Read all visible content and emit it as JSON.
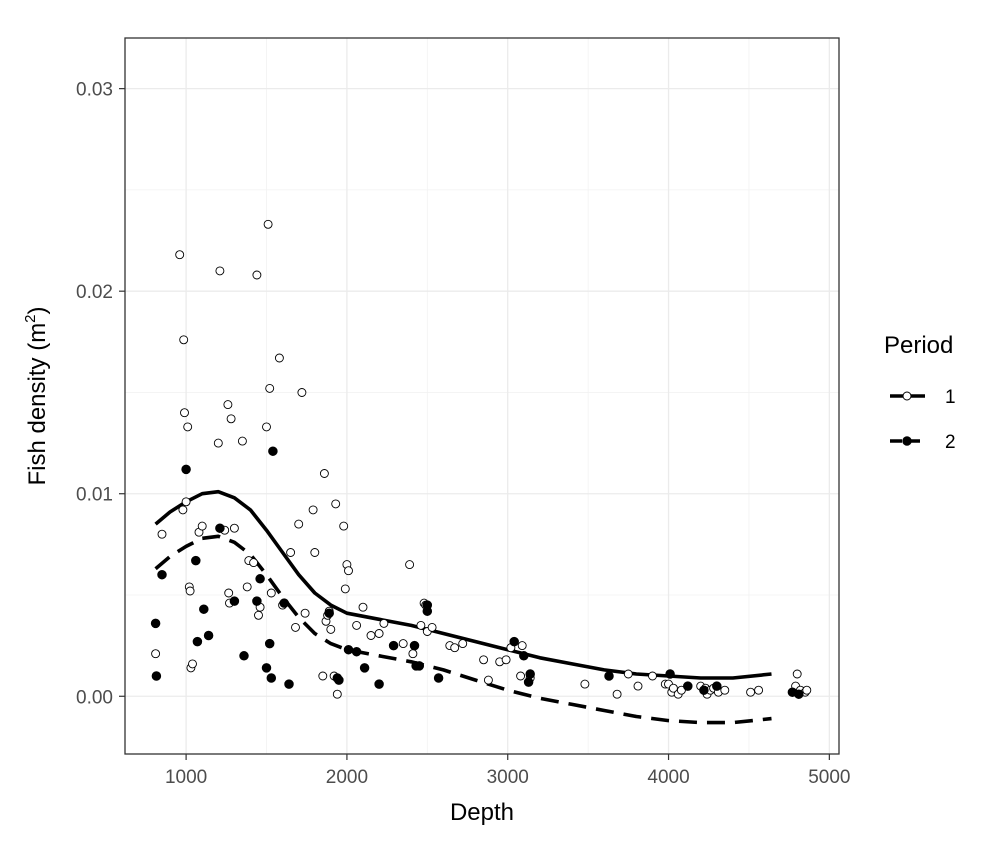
{
  "chart_data": {
    "type": "scatter",
    "xlabel": "Depth",
    "ylabel": "Fish density (m",
    "ylabel_sup": "2",
    "ylabel_close": ")",
    "xlim": [
      620,
      5060
    ],
    "ylim": [
      -0.00285,
      0.0325
    ],
    "x_ticks": [
      1000,
      2000,
      3000,
      4000,
      5000
    ],
    "x_tick_labels": [
      "1000",
      "2000",
      "3000",
      "4000",
      "5000"
    ],
    "y_ticks": [
      0,
      0.01,
      0.02,
      0.03
    ],
    "y_tick_labels": [
      "0.00",
      "0.01",
      "0.02",
      "0.03"
    ],
    "grid": true,
    "legend": {
      "title": "Period",
      "position": "right",
      "entries": [
        {
          "label": "1",
          "marker": "open-circle",
          "line": "solid"
        },
        {
          "label": "2",
          "marker": "filled-circle",
          "line": "dashed"
        }
      ]
    },
    "series": [
      {
        "name": "1",
        "marker": "open-circle",
        "points": [
          [
            810,
            0.0021
          ],
          [
            850,
            0.008
          ],
          [
            960,
            0.0218
          ],
          [
            980,
            0.0092
          ],
          [
            985,
            0.0176
          ],
          [
            990,
            0.014
          ],
          [
            1000,
            0.0096
          ],
          [
            1010,
            0.0133
          ],
          [
            1020,
            0.0054
          ],
          [
            1025,
            0.0052
          ],
          [
            1030,
            0.0014
          ],
          [
            1040,
            0.0016
          ],
          [
            1080,
            0.0081
          ],
          [
            1100,
            0.0084
          ],
          [
            1200,
            0.0125
          ],
          [
            1210,
            0.021
          ],
          [
            1240,
            0.0082
          ],
          [
            1260,
            0.0144
          ],
          [
            1265,
            0.0051
          ],
          [
            1270,
            0.0046
          ],
          [
            1280,
            0.0137
          ],
          [
            1300,
            0.0083
          ],
          [
            1350,
            0.0126
          ],
          [
            1380,
            0.0054
          ],
          [
            1390,
            0.0067
          ],
          [
            1420,
            0.0066
          ],
          [
            1440,
            0.0208
          ],
          [
            1450,
            0.004
          ],
          [
            1460,
            0.0044
          ],
          [
            1500,
            0.0133
          ],
          [
            1510,
            0.0233
          ],
          [
            1520,
            0.0152
          ],
          [
            1530,
            0.0051
          ],
          [
            1580,
            0.0167
          ],
          [
            1600,
            0.0045
          ],
          [
            1650,
            0.0071
          ],
          [
            1680,
            0.0034
          ],
          [
            1700,
            0.0085
          ],
          [
            1720,
            0.015
          ],
          [
            1740,
            0.0041
          ],
          [
            1790,
            0.0092
          ],
          [
            1800,
            0.0071
          ],
          [
            1850,
            0.001
          ],
          [
            1860,
            0.011
          ],
          [
            1870,
            0.0037
          ],
          [
            1880,
            0.004
          ],
          [
            1890,
            0.0042
          ],
          [
            1900,
            0.0033
          ],
          [
            1920,
            0.001
          ],
          [
            1930,
            0.0095
          ],
          [
            1940,
            0.0001
          ],
          [
            1980,
            0.0084
          ],
          [
            1990,
            0.0053
          ],
          [
            2000,
            0.0065
          ],
          [
            2010,
            0.0062
          ],
          [
            2060,
            0.0035
          ],
          [
            2100,
            0.0044
          ],
          [
            2150,
            0.003
          ],
          [
            2200,
            0.0031
          ],
          [
            2230,
            0.0036
          ],
          [
            2350,
            0.0026
          ],
          [
            2390,
            0.0065
          ],
          [
            2410,
            0.0021
          ],
          [
            2460,
            0.0035
          ],
          [
            2480,
            0.0046
          ],
          [
            2490,
            0.0045
          ],
          [
            2500,
            0.0032
          ],
          [
            2530,
            0.0034
          ],
          [
            2640,
            0.0025
          ],
          [
            2670,
            0.0024
          ],
          [
            2720,
            0.0026
          ],
          [
            2850,
            0.0018
          ],
          [
            2880,
            0.0008
          ],
          [
            2950,
            0.0017
          ],
          [
            2990,
            0.0018
          ],
          [
            3020,
            0.0024
          ],
          [
            3080,
            0.001
          ],
          [
            3090,
            0.0025
          ],
          [
            3140,
            0.0009
          ],
          [
            3480,
            0.0006
          ],
          [
            3680,
            0.0001
          ],
          [
            3750,
            0.0011
          ],
          [
            3810,
            0.0005
          ],
          [
            3900,
            0.001
          ],
          [
            3980,
            0.0006
          ],
          [
            4000,
            0.0006
          ],
          [
            4020,
            0.0002
          ],
          [
            4030,
            0.0004
          ],
          [
            4060,
            0.0001
          ],
          [
            4080,
            0.0003
          ],
          [
            4200,
            0.0005
          ],
          [
            4230,
            0.0004
          ],
          [
            4240,
            0.0001
          ],
          [
            4260,
            0.0003
          ],
          [
            4280,
            0.0004
          ],
          [
            4310,
            0.0002
          ],
          [
            4350,
            0.0003
          ],
          [
            4510,
            0.0002
          ],
          [
            4560,
            0.0003
          ],
          [
            4790,
            0.0005
          ],
          [
            4800,
            0.0011
          ],
          [
            4820,
            0.0003
          ],
          [
            4850,
            0.0002
          ],
          [
            4860,
            0.0003
          ]
        ],
        "smooth": [
          [
            810,
            0.0085
          ],
          [
            900,
            0.0091
          ],
          [
            1000,
            0.0096
          ],
          [
            1100,
            0.01
          ],
          [
            1200,
            0.0101
          ],
          [
            1300,
            0.0098
          ],
          [
            1400,
            0.0092
          ],
          [
            1500,
            0.0082
          ],
          [
            1600,
            0.0071
          ],
          [
            1700,
            0.006
          ],
          [
            1800,
            0.0051
          ],
          [
            1900,
            0.0045
          ],
          [
            2000,
            0.0041
          ],
          [
            2200,
            0.0038
          ],
          [
            2400,
            0.0035
          ],
          [
            2600,
            0.0031
          ],
          [
            2800,
            0.0027
          ],
          [
            3000,
            0.0023
          ],
          [
            3200,
            0.0019
          ],
          [
            3400,
            0.0016
          ],
          [
            3600,
            0.0013
          ],
          [
            3800,
            0.0011
          ],
          [
            4000,
            0.001
          ],
          [
            4200,
            0.0009
          ],
          [
            4400,
            0.0009
          ],
          [
            4640,
            0.0011
          ]
        ]
      },
      {
        "name": "2",
        "marker": "filled-circle",
        "points": [
          [
            810,
            0.0036
          ],
          [
            815,
            0.001
          ],
          [
            850,
            0.006
          ],
          [
            1000,
            0.0112
          ],
          [
            1060,
            0.0067
          ],
          [
            1070,
            0.0027
          ],
          [
            1110,
            0.0043
          ],
          [
            1140,
            0.003
          ],
          [
            1210,
            0.0083
          ],
          [
            1300,
            0.0047
          ],
          [
            1360,
            0.002
          ],
          [
            1440,
            0.0047
          ],
          [
            1460,
            0.0058
          ],
          [
            1500,
            0.0014
          ],
          [
            1520,
            0.0026
          ],
          [
            1530,
            0.0009
          ],
          [
            1540,
            0.0121
          ],
          [
            1610,
            0.0046
          ],
          [
            1640,
            0.0006
          ],
          [
            1890,
            0.0041
          ],
          [
            1940,
            0.0009
          ],
          [
            1950,
            0.0008
          ],
          [
            2010,
            0.0023
          ],
          [
            2060,
            0.0022
          ],
          [
            2110,
            0.0014
          ],
          [
            2200,
            0.0006
          ],
          [
            2290,
            0.0025
          ],
          [
            2420,
            0.0025
          ],
          [
            2430,
            0.0015
          ],
          [
            2450,
            0.0015
          ],
          [
            2500,
            0.0045
          ],
          [
            2500,
            0.0042
          ],
          [
            2570,
            0.0009
          ],
          [
            3040,
            0.0027
          ],
          [
            3100,
            0.002
          ],
          [
            3130,
            0.0007
          ],
          [
            3140,
            0.0011
          ],
          [
            3630,
            0.001
          ],
          [
            4010,
            0.0011
          ],
          [
            4120,
            0.0005
          ],
          [
            4220,
            0.0003
          ],
          [
            4300,
            0.0005
          ],
          [
            4770,
            0.0002
          ],
          [
            4810,
            0.0001
          ]
        ],
        "smooth": [
          [
            810,
            0.0063
          ],
          [
            900,
            0.0069
          ],
          [
            1000,
            0.0074
          ],
          [
            1100,
            0.0078
          ],
          [
            1200,
            0.0079
          ],
          [
            1300,
            0.0076
          ],
          [
            1400,
            0.007
          ],
          [
            1500,
            0.006
          ],
          [
            1600,
            0.0049
          ],
          [
            1700,
            0.0039
          ],
          [
            1800,
            0.0031
          ],
          [
            1900,
            0.0026
          ],
          [
            2000,
            0.0023
          ],
          [
            2200,
            0.002
          ],
          [
            2400,
            0.0017
          ],
          [
            2600,
            0.0013
          ],
          [
            2800,
            0.0008
          ],
          [
            3000,
            0.0003
          ],
          [
            3200,
            -0.0001
          ],
          [
            3400,
            -0.0004
          ],
          [
            3600,
            -0.0007
          ],
          [
            3800,
            -0.001
          ],
          [
            4000,
            -0.0012
          ],
          [
            4200,
            -0.0013
          ],
          [
            4400,
            -0.0013
          ],
          [
            4640,
            -0.0011
          ]
        ]
      }
    ]
  }
}
